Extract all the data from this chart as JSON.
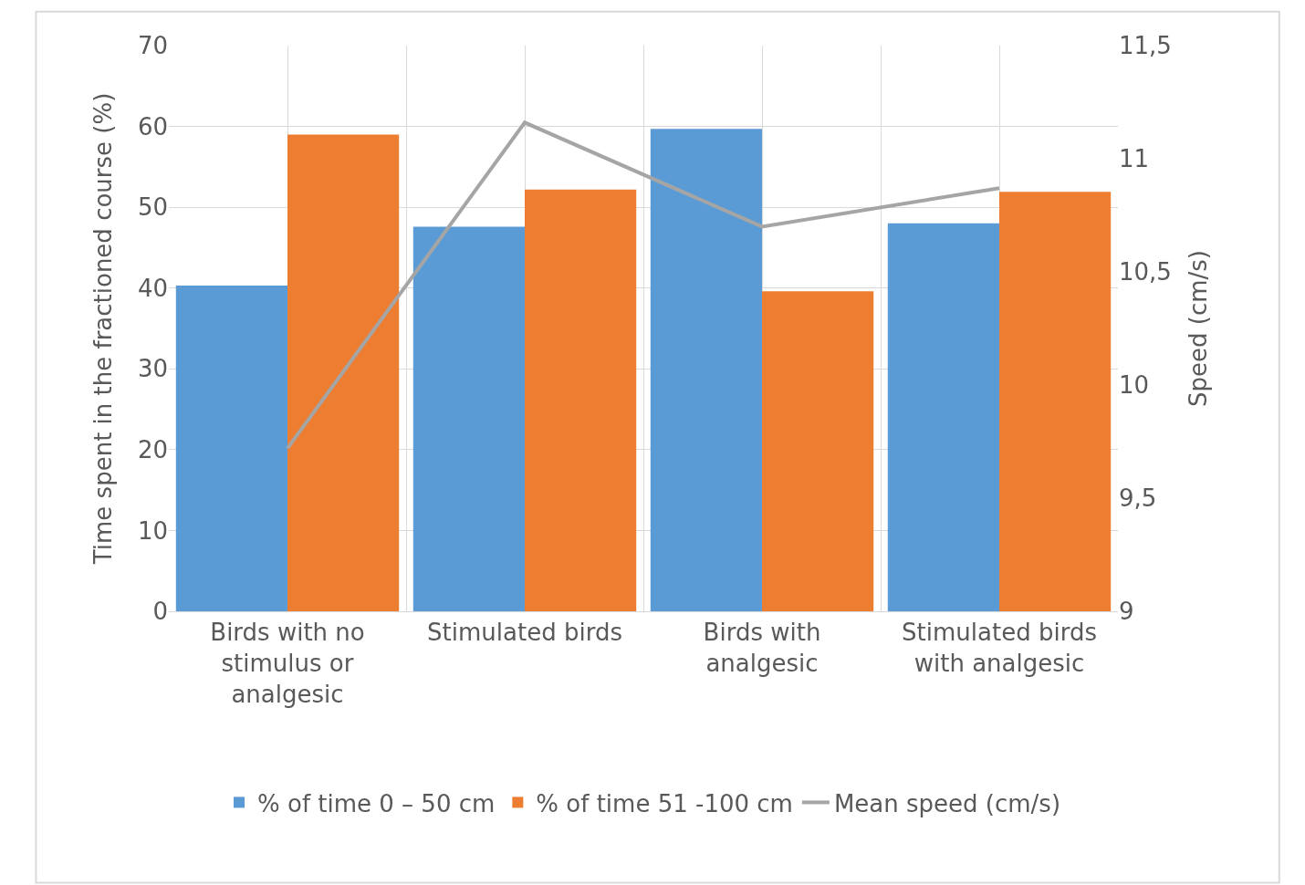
{
  "chart_data": {
    "type": "bar",
    "categories": [
      "Birds with no stimulus or analgesic",
      "Stimulated birds",
      "Birds with analgesic",
      "Stimulated birds with analgesic"
    ],
    "series": [
      {
        "name": "% of time 0 – 50 cm",
        "color": "#5b9bd5",
        "values": [
          40.3,
          47.6,
          59.7,
          48.0
        ]
      },
      {
        "name": "% of time 51 -100 cm",
        "color": "#ed7d31",
        "values": [
          59.0,
          52.2,
          39.6,
          51.9
        ]
      },
      {
        "name": "Mean speed (cm/s)",
        "type": "line",
        "axis": "y2",
        "color": "#a5a5a5",
        "marker": "none",
        "values": [
          9.72,
          11.16,
          10.7,
          10.87
        ]
      }
    ],
    "ylabel": "Time spent in the fractioned course (%)",
    "y2label": "Speed (cm/s)",
    "ylim": [
      0,
      70
    ],
    "yticks": [
      0,
      10,
      20,
      30,
      40,
      50,
      60,
      70
    ],
    "y2lim": [
      9,
      11.5
    ],
    "y2ticks": [
      9,
      {
        "value": 9.5,
        "label": "9,5"
      },
      10,
      {
        "value": 10.5,
        "label": "10,5"
      },
      11,
      {
        "value": 11.5,
        "label": "11,5"
      }
    ],
    "grid": true,
    "legend": "bottom"
  }
}
